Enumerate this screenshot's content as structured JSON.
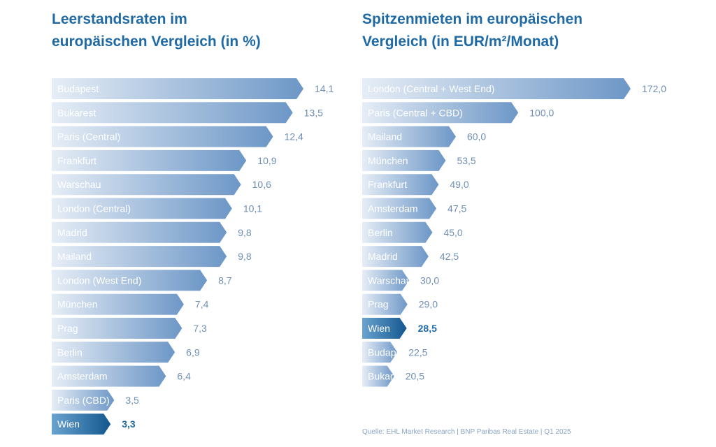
{
  "colors": {
    "bar_light": "#e6edf6",
    "bar_dark": "#6d97c7",
    "highlight_light": "#6aa3cf",
    "highlight_dark": "#13578f",
    "title": "#1f6aa5",
    "value_text": "#6f8fb5",
    "highlight_text": "#1f6aa5"
  },
  "chart_data": [
    {
      "type": "bar",
      "orientation": "horizontal",
      "title_lines": [
        "Leerstandsraten im",
        "europäischen Vergleich (in %)"
      ],
      "xlim": [
        0,
        14.1
      ],
      "highlight": "Wien",
      "categories": [
        "Budapest",
        "Bukarest",
        "Paris (Central)",
        "Frankfurt",
        "Warschau",
        "London (Central)",
        "Madrid",
        "Mailand",
        "London (West End)",
        "München",
        "Prag",
        "Berlin",
        "Amsterdam",
        "Paris (CBD)",
        "Wien"
      ],
      "values": [
        14.1,
        13.5,
        12.4,
        10.9,
        10.6,
        10.1,
        9.8,
        9.8,
        8.7,
        7.4,
        7.3,
        6.9,
        6.4,
        3.5,
        3.3
      ],
      "value_labels": [
        "14,1",
        "13,5",
        "12,4",
        "10,9",
        "10,6",
        "10,1",
        "9,8",
        "9,8",
        "8,7",
        "7,4",
        "7,3",
        "6,9",
        "6,4",
        "3,5",
        "3,3"
      ]
    },
    {
      "type": "bar",
      "orientation": "horizontal",
      "title_lines": [
        "Spitzenmieten im europäischen",
        "Vergleich (in EUR/m²/Monat)"
      ],
      "xlim": [
        0,
        172.0
      ],
      "highlight": "Wien",
      "categories": [
        "London (Central + West End)",
        "Paris (Central + CBD)",
        "Mailand",
        "München",
        "Frankfurt",
        "Amsterdam",
        "Berlin",
        "Madrid",
        "Warschau",
        "Prag",
        "Wien",
        "Budapest",
        "Bukarest"
      ],
      "values": [
        172.0,
        100.0,
        60.0,
        53.5,
        49.0,
        47.5,
        45.0,
        42.5,
        30.0,
        29.0,
        28.5,
        22.5,
        20.5
      ],
      "value_labels": [
        "172,0",
        "100,0",
        "60,0",
        "53,5",
        "49,0",
        "47,5",
        "45,0",
        "42,5",
        "30,0",
        "29,0",
        "28,5",
        "22,5",
        "20,5"
      ]
    }
  ],
  "source": "Quelle: EHL Market Research | BNP Paribas Real Estate | Q1 2025"
}
